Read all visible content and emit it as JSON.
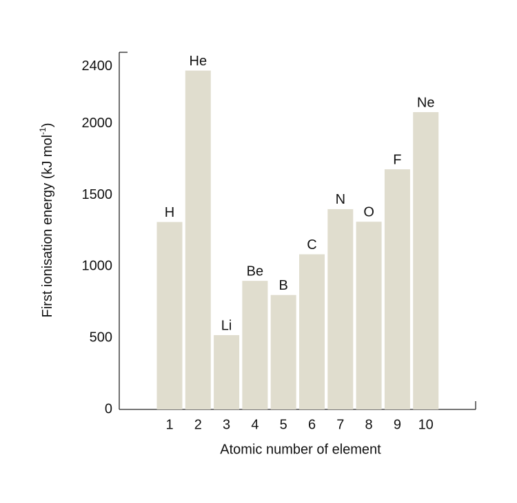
{
  "chart_data": {
    "type": "bar",
    "ylabel": {
      "text": "First ionisation energy (kJ mol",
      "superscript": "-1",
      "end": ")"
    },
    "xlabel": "Atomic number of element",
    "categories": [
      "1",
      "2",
      "3",
      "4",
      "5",
      "6",
      "7",
      "8",
      "9",
      "10"
    ],
    "values": [
      1312,
      2372,
      520,
      900,
      801,
      1086,
      1402,
      1314,
      1681,
      2081
    ],
    "bar_labels": [
      "H",
      "He",
      "Li",
      "Be",
      "B",
      "C",
      "N",
      "O",
      "F",
      "Ne"
    ],
    "color": "#e0ddce",
    "ylim": [
      0,
      2500
    ],
    "yticks": [
      0,
      500,
      1000,
      1500,
      2000,
      2400
    ],
    "grid": false
  }
}
